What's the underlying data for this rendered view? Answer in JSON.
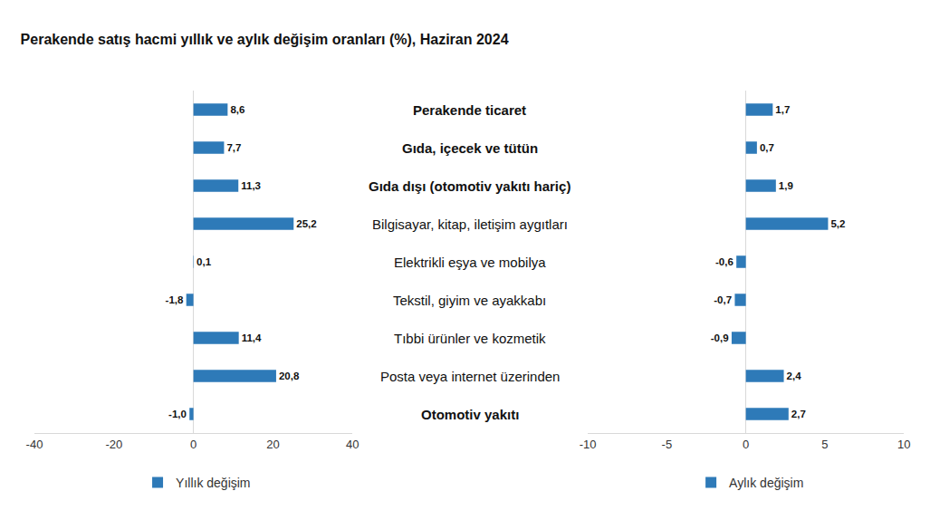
{
  "chart_data": {
    "type": "bar",
    "orientation": "horizontal",
    "title": "Perakende satış hacmi yıllık ve aylık değişim oranları (%), Haziran 2024",
    "categories": [
      "Perakende ticaret",
      "Gıda, içecek ve tütün",
      "Gıda dışı (otomotiv yakıtı hariç)",
      "Bilgisayar, kitap, iletişim aygıtları",
      "Elektrikli eşya ve mobilya",
      "Tekstil, giyim ve ayakkabı",
      "Tıbbi ürünler ve kozmetik",
      "Posta veya internet üzerinden",
      "Otomotiv yakıtı"
    ],
    "series": [
      {
        "name": "Yıllık değişim",
        "color": "#2e7ab8",
        "axis": "x",
        "values": [
          8.6,
          7.7,
          11.3,
          25.2,
          0.1,
          -1.8,
          11.4,
          20.8,
          -1.0
        ],
        "value_labels": [
          "8,6",
          "7,7",
          "11,3",
          "25,2",
          "0,1",
          "-1,8",
          "11,4",
          "20,8",
          "-1,0"
        ]
      },
      {
        "name": "Aylık değişim",
        "color": "#2e7ab8",
        "axis": "x2",
        "values": [
          1.7,
          0.7,
          1.9,
          5.2,
          -0.6,
          -0.7,
          -0.9,
          2.4,
          2.7
        ],
        "value_labels": [
          "1,7",
          "0,7",
          "1,9",
          "5,2",
          "-0,6",
          "-0,7",
          "-0,9",
          "2,4",
          "2,7"
        ]
      }
    ],
    "xlim": [
      -40,
      40
    ],
    "xticks": [
      -40,
      -20,
      0,
      20,
      40
    ],
    "x2lim": [
      -10,
      10
    ],
    "x2ticks": [
      -10,
      -5,
      0,
      5,
      10
    ],
    "data_labels": true,
    "grid": false
  }
}
